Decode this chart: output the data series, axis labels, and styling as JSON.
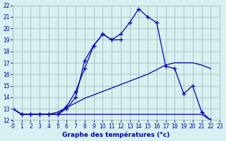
{
  "bg_color": "#d8f0f0",
  "grid_color": "#b0c8c8",
  "line_color": "#0000aa",
  "xlabel": "Graphe des températures (°c)",
  "xlim": [
    0,
    23
  ],
  "ylim": [
    12,
    22
  ],
  "yticks": [
    12,
    13,
    14,
    15,
    16,
    17,
    18,
    19,
    20,
    21,
    22
  ],
  "xticks": [
    0,
    1,
    2,
    3,
    4,
    5,
    6,
    7,
    8,
    9,
    10,
    11,
    12,
    13,
    14,
    15,
    16,
    17,
    18,
    19,
    20,
    21,
    22,
    23
  ],
  "line1_x": [
    0,
    1,
    2,
    3,
    4,
    5,
    6,
    7,
    8,
    9,
    10,
    11,
    12,
    13,
    14,
    15,
    16,
    17,
    18,
    19,
    20,
    21,
    22
  ],
  "line1_y": [
    13.0,
    12.5,
    12.5,
    12.5,
    12.5,
    12.5,
    13.0,
    14.0,
    17.2,
    18.5,
    19.5,
    19.0,
    19.5,
    20.5,
    21.7,
    21.0,
    20.5,
    16.7,
    16.5,
    14.3,
    15.0,
    12.7,
    12.0
  ],
  "line2_x": [
    0,
    1,
    2,
    3,
    4,
    5,
    6,
    7,
    8,
    9,
    10,
    11,
    12,
    13,
    14,
    15,
    16,
    17,
    18,
    19,
    20,
    21,
    22
  ],
  "line2_y": [
    13.0,
    12.5,
    12.5,
    12.5,
    12.5,
    12.7,
    13.1,
    13.5,
    13.9,
    14.2,
    14.5,
    14.8,
    15.1,
    15.4,
    15.7,
    16.0,
    16.4,
    16.8,
    17.0,
    17.0,
    17.0,
    16.8,
    16.5
  ],
  "line3_x": [
    0,
    1,
    2,
    3,
    4,
    5,
    6,
    7,
    8,
    9,
    10,
    11,
    12,
    13,
    14,
    15,
    16,
    17,
    18,
    19,
    20,
    21,
    22
  ],
  "line3_y": [
    13.0,
    12.5,
    12.5,
    12.5,
    12.5,
    12.5,
    12.5,
    12.5,
    12.5,
    12.5,
    12.5,
    12.5,
    12.5,
    12.5,
    12.5,
    12.5,
    12.5,
    12.5,
    12.5,
    12.5,
    12.5,
    12.5,
    12.0
  ],
  "line4_x": [
    0,
    1,
    2,
    3,
    4,
    5,
    6,
    7,
    8,
    9,
    10,
    11,
    12
  ],
  "line4_y": [
    13.0,
    12.5,
    12.5,
    12.5,
    12.5,
    12.5,
    13.2,
    14.5,
    16.5,
    18.5,
    19.5,
    19.0,
    19.0
  ]
}
